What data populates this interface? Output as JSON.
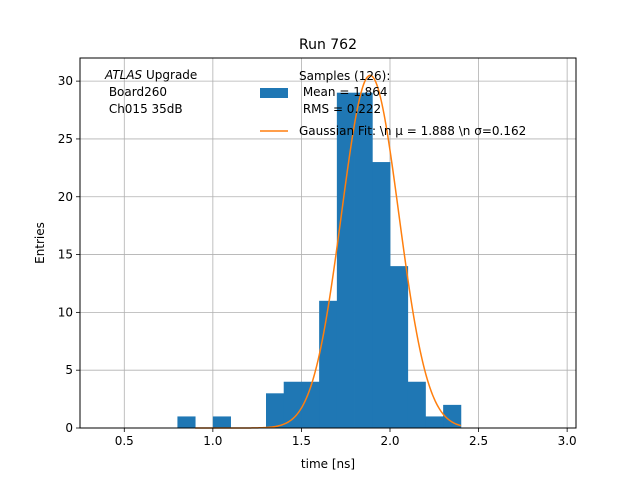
{
  "chart_data": {
    "type": "bar",
    "title": "Run 762",
    "xlabel": "time [ns]",
    "ylabel": "Entries",
    "xlim": [
      0.25,
      3.05
    ],
    "ylim": [
      0,
      32
    ],
    "xticks": [
      "0.5",
      "1.0",
      "1.5",
      "2.0",
      "2.5",
      "3.0"
    ],
    "yticks": [
      "0",
      "5",
      "10",
      "15",
      "20",
      "25",
      "30"
    ],
    "grid": true,
    "bin_edges": [
      0.8,
      0.9,
      1.0,
      1.1,
      1.2,
      1.3,
      1.4,
      1.5,
      1.6,
      1.7,
      1.8,
      1.9,
      2.0,
      2.1,
      2.2,
      2.3,
      2.4,
      2.5
    ],
    "counts": [
      1,
      0,
      1,
      0,
      0,
      3,
      4,
      4,
      11,
      29,
      29,
      23,
      14,
      4,
      1,
      2,
      0
    ],
    "histogram_color": "#1f77b4",
    "fit": {
      "mu": 1.888,
      "sigma": 0.162,
      "amplitude": 30.5,
      "x_range": [
        0.9,
        2.4
      ],
      "color": "#ff7f0e"
    },
    "legend": {
      "placement": "top-right",
      "histogram_label": [
        "Samples (126):",
        " Mean = 1.864",
        " RMS = 0.222"
      ],
      "fit_label": "Gaussian Fit: \\n μ = 1.888 \\n σ=0.162"
    },
    "annotation": {
      "italic": "ATLAS",
      "rest": " Upgrade",
      "lines": [
        " Board260",
        " Ch015 35dB"
      ]
    }
  }
}
